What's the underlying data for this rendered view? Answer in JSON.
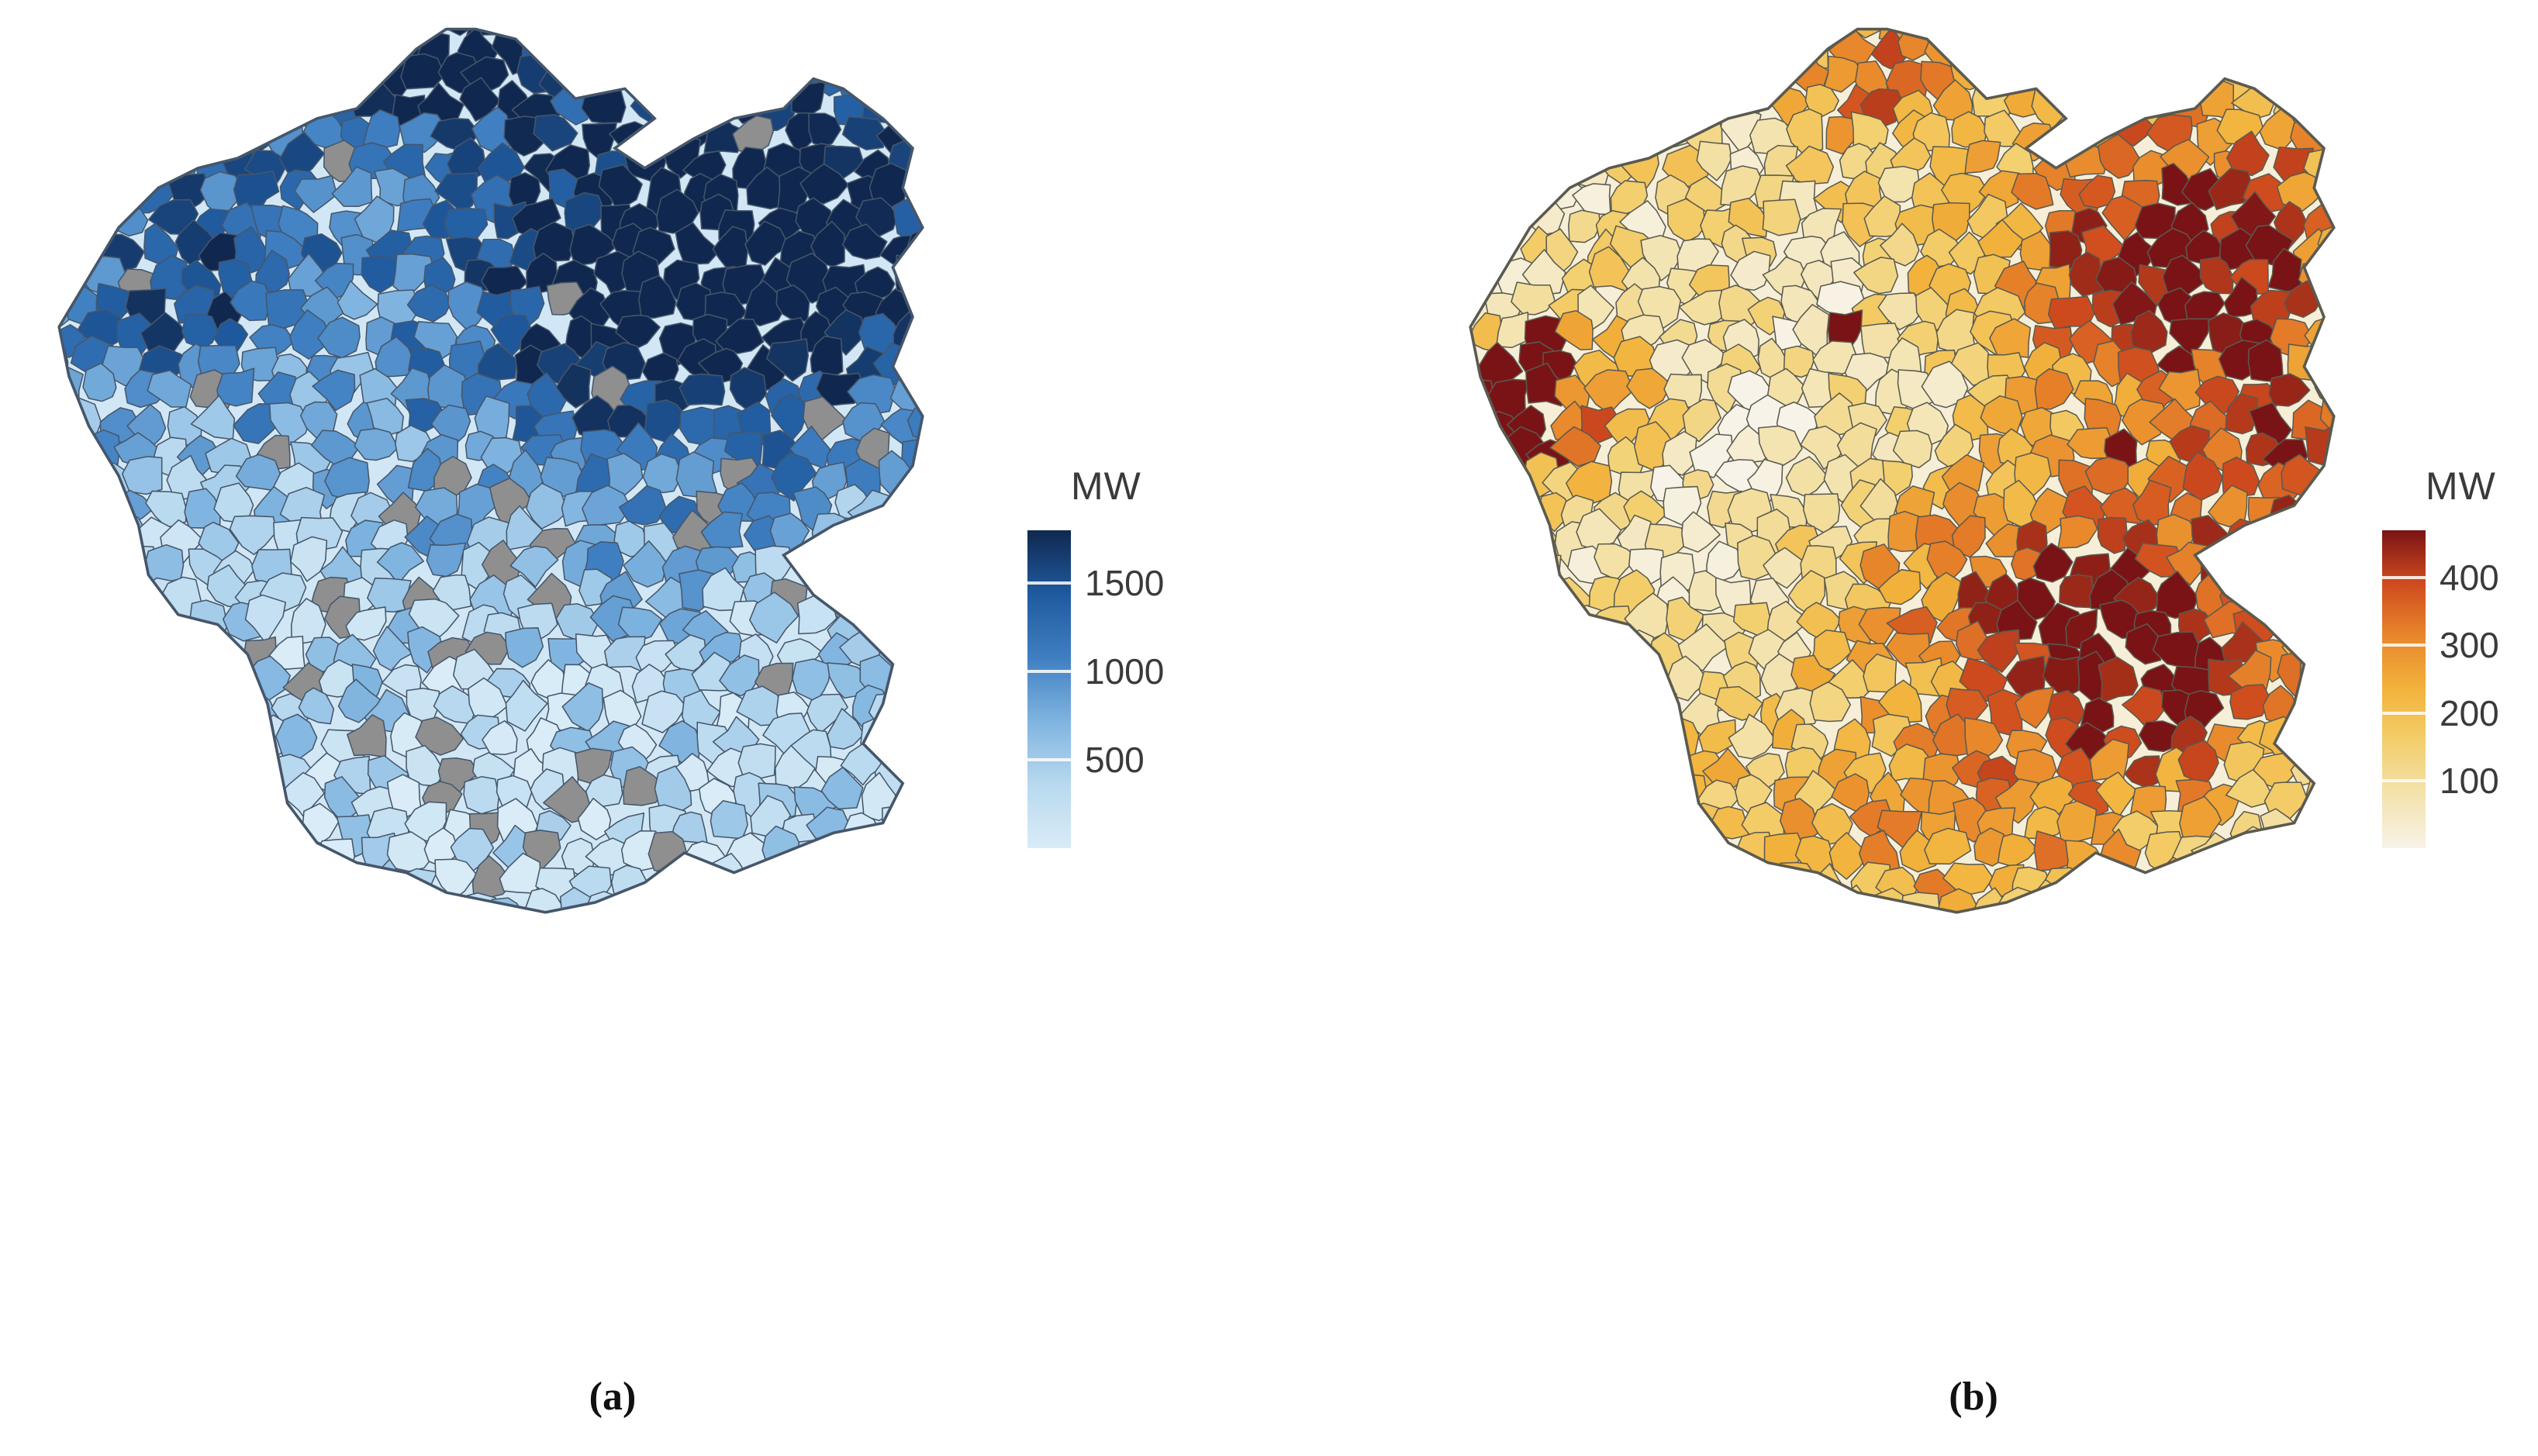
{
  "figure": {
    "background": "#ffffff",
    "description_visible": "Two choropleth maps of Germany by district",
    "panel_count": 2
  },
  "chart_data": [
    {
      "type": "choropleth",
      "panel": "a",
      "caption": "(a)",
      "region": "Germany districts",
      "unit": "MW",
      "legend_title": "MW",
      "legend_position": "right",
      "ticks": [
        1500,
        1000,
        500
      ],
      "scale_min": 0,
      "scale_max": 1800,
      "color_low": "#d9ecf7",
      "color_high": "#10284f",
      "missing_color": "#8f8f8f",
      "border_color": "#46566a",
      "legend_gradient": [
        "#10284f",
        "#1f5a9e",
        "#3f7fc1",
        "#7fb4e0",
        "#b8d9ef",
        "#d9ecf7"
      ]
    },
    {
      "type": "choropleth",
      "panel": "b",
      "caption": "(b)",
      "region": "Germany districts",
      "unit": "MW",
      "legend_title": "MW",
      "legend_position": "right",
      "ticks": [
        400,
        300,
        200,
        100
      ],
      "scale_min": 0,
      "scale_max": 470,
      "color_low": "#f7f3e8",
      "color_high": "#7a1315",
      "border_color": "#5a5a50",
      "legend_gradient": [
        "#7a1315",
        "#cf4b1e",
        "#e8872b",
        "#f2b33c",
        "#f3cf6d",
        "#f3e3ae",
        "#f7f3e8"
      ]
    }
  ]
}
